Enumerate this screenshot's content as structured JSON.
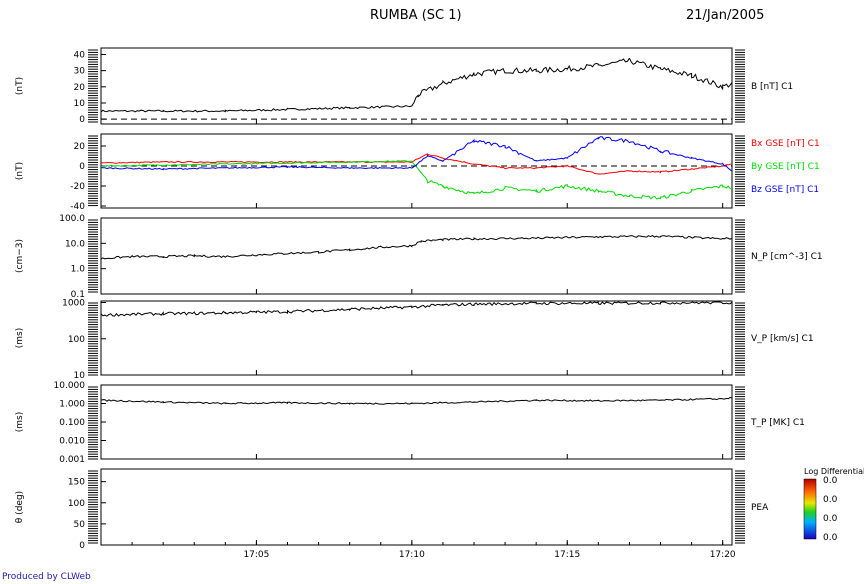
{
  "header": {
    "title": "RUMBA (SC 1)",
    "date": "21/Jan/2005"
  },
  "credit": "Produced by CLWeb",
  "colorbar": {
    "title": "Log Differential",
    "labels": [
      "0.0",
      "0.0",
      "0.0",
      "0.0"
    ]
  },
  "x_ticks": [
    "17:05",
    "17:10",
    "17:15",
    "17:20"
  ],
  "colors": {
    "black": "#000000",
    "red": "#ff0000",
    "green": "#00dd00",
    "blue": "#0000ff"
  },
  "chart_data": [
    {
      "type": "line",
      "unit": "(nT)",
      "yticks": [
        "0",
        "10",
        "20",
        "30",
        "40"
      ],
      "ylim": [
        -3,
        44
      ],
      "log": false,
      "zero_line": true,
      "x": [
        "17:00",
        "17:02",
        "17:04",
        "17:06",
        "17:08",
        "17:10",
        "17:10.2",
        "17:11",
        "17:12",
        "17:13",
        "17:14",
        "17:15",
        "17:16",
        "17:17",
        "17:18",
        "17:19",
        "17:20",
        "17:20.3"
      ],
      "series": [
        {
          "name": "B [nT] C1",
          "color": "#000000",
          "values": [
            5,
            5,
            5,
            6,
            7,
            8,
            15,
            22,
            28,
            30,
            30,
            31,
            33,
            36,
            31,
            27,
            20,
            22
          ]
        }
      ]
    },
    {
      "type": "line",
      "unit": "(nT)",
      "yticks": [
        "-40",
        "-20",
        "0",
        "20"
      ],
      "ylim": [
        -42,
        32
      ],
      "log": false,
      "zero_line": true,
      "x": [
        "17:00",
        "17:02",
        "17:04",
        "17:06",
        "17:08",
        "17:10",
        "17:10.5",
        "17:11",
        "17:12",
        "17:13",
        "17:14",
        "17:15",
        "17:16",
        "17:17",
        "17:18",
        "17:19",
        "17:20",
        "17:20.3"
      ],
      "series": [
        {
          "name": "Bx GSE [nT] C1",
          "color": "#ff0000",
          "values": [
            3,
            4,
            4,
            4,
            4,
            4,
            12,
            8,
            2,
            -2,
            -2,
            0,
            -8,
            -5,
            -6,
            -3,
            0,
            2
          ]
        },
        {
          "name": "By GSE [nT] C1",
          "color": "#00dd00",
          "values": [
            0,
            1,
            2,
            3,
            4,
            5,
            -15,
            -20,
            -28,
            -22,
            -25,
            -20,
            -25,
            -30,
            -32,
            -25,
            -20,
            -22
          ]
        },
        {
          "name": "Bz GSE [nT] C1",
          "color": "#0000ff",
          "values": [
            -2,
            -3,
            -2,
            -1,
            -2,
            -2,
            10,
            5,
            25,
            20,
            5,
            8,
            28,
            25,
            15,
            8,
            2,
            -5
          ]
        }
      ]
    },
    {
      "type": "line",
      "unit": "(cm−3)",
      "yticks": [
        "0.1",
        "1.0",
        "10.0",
        "100.0"
      ],
      "ylim": [
        0.1,
        100
      ],
      "log": true,
      "x": [
        "17:00",
        "17:01",
        "17:02",
        "17:03",
        "17:04",
        "17:05",
        "17:06",
        "17:07",
        "17:08",
        "17:09",
        "17:10",
        "17:10.3",
        "17:11",
        "17:12",
        "17:14",
        "17:16",
        "17:18",
        "17:20",
        "17:20.3"
      ],
      "series": [
        {
          "name": "N_P [cm^-3] C1",
          "color": "#000000",
          "values": [
            2.5,
            3,
            3,
            3.2,
            3,
            3.5,
            4,
            4.5,
            5.5,
            7,
            8,
            12,
            14,
            15,
            16,
            18,
            19,
            15,
            16
          ]
        }
      ]
    },
    {
      "type": "line",
      "unit": "(ms)",
      "yticks": [
        "10",
        "100",
        "1000"
      ],
      "ylim": [
        10,
        1100
      ],
      "log": true,
      "x": [
        "17:00",
        "17:01",
        "17:02",
        "17:03",
        "17:04",
        "17:05",
        "17:06",
        "17:07",
        "17:08",
        "17:09",
        "17:10",
        "17:11",
        "17:12",
        "17:14",
        "17:16",
        "17:18",
        "17:20",
        "17:20.3"
      ],
      "series": [
        {
          "name": "V_P [km/s] C1",
          "color": "#000000",
          "values": [
            450,
            470,
            490,
            500,
            520,
            540,
            560,
            600,
            650,
            700,
            750,
            850,
            900,
            950,
            950,
            980,
            1000,
            1000
          ]
        }
      ]
    },
    {
      "type": "line",
      "unit": "(ms)",
      "yticks": [
        "0.001",
        "0.010",
        "0.100",
        "1.000",
        "10.000"
      ],
      "ylim": [
        0.001,
        10
      ],
      "log": true,
      "x": [
        "17:00",
        "17:02",
        "17:04",
        "17:06",
        "17:08",
        "17:10",
        "17:12",
        "17:14",
        "17:16",
        "17:18",
        "17:20",
        "17:20.3"
      ],
      "series": [
        {
          "name": "T_P [MK] C1",
          "color": "#000000",
          "values": [
            1.5,
            1.2,
            1.0,
            1.1,
            1.0,
            1.0,
            1.2,
            1.5,
            1.4,
            1.5,
            1.8,
            2.0
          ]
        }
      ]
    },
    {
      "type": "heatmap",
      "unit": "θ (deg)",
      "yticks": [
        "0",
        "50",
        "100",
        "150"
      ],
      "ylim": [
        0,
        180
      ],
      "log": false,
      "series": [
        {
          "name": "PEA",
          "color": "#000000",
          "values": []
        }
      ]
    }
  ]
}
